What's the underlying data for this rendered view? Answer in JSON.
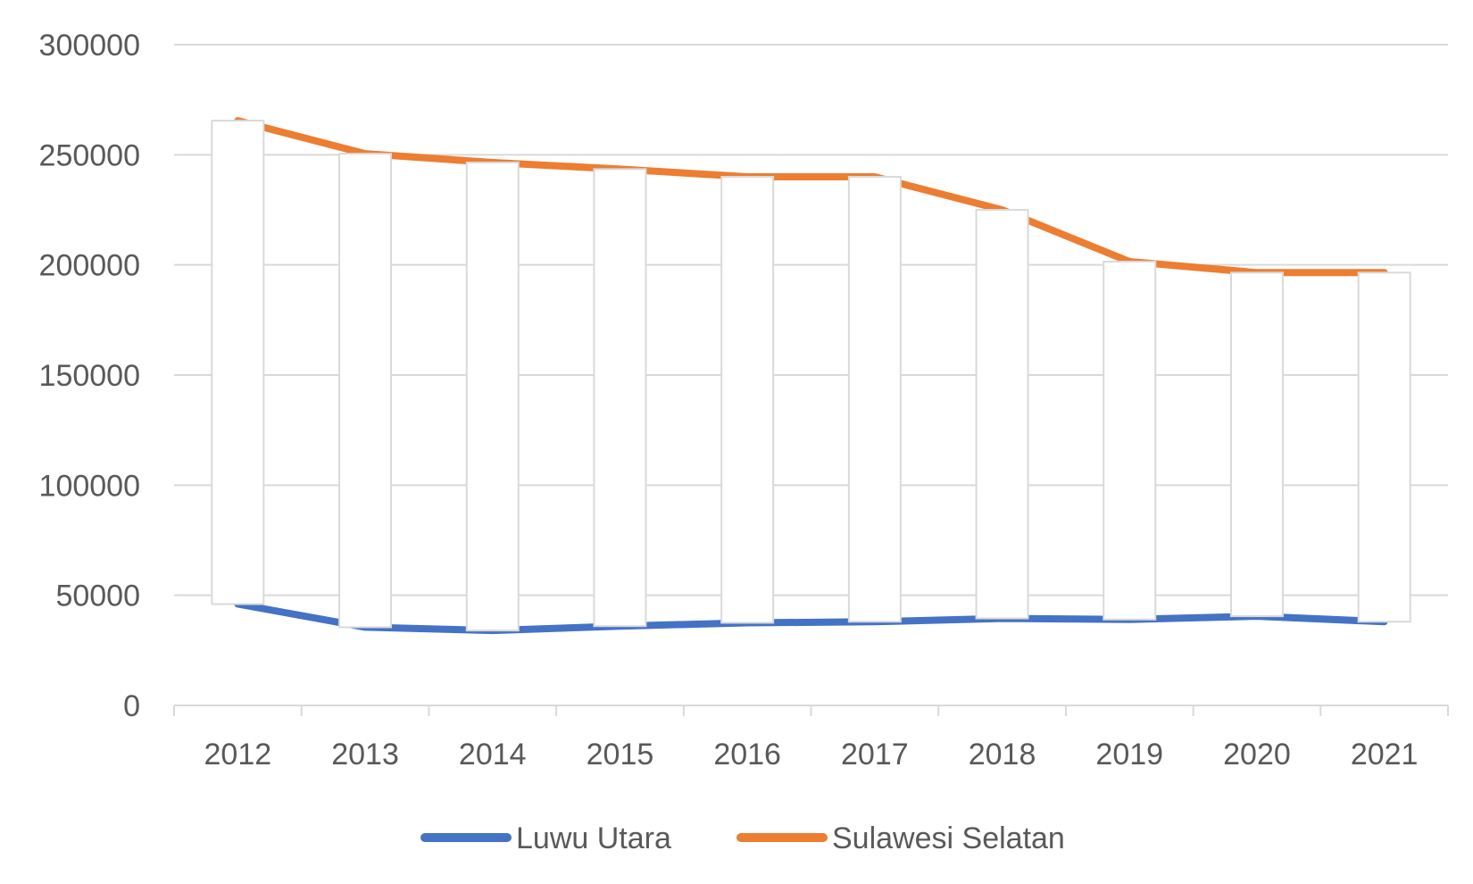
{
  "chart_data": {
    "type": "line",
    "categories": [
      "2012",
      "2013",
      "2014",
      "2015",
      "2016",
      "2017",
      "2018",
      "2019",
      "2020",
      "2021"
    ],
    "series": [
      {
        "name": "Luwu Utara",
        "color": "#4472C4",
        "values": [
          46000,
          35500,
          34000,
          36000,
          37500,
          38000,
          39500,
          39000,
          40500,
          38000
        ]
      },
      {
        "name": "Sulawesi Selatan",
        "color": "#ED7D31",
        "values": [
          265500,
          250500,
          246500,
          243500,
          240000,
          240000,
          225000,
          201500,
          196500,
          196500
        ]
      }
    ],
    "range_boxes": "high-low",
    "ylim": [
      0,
      300000
    ],
    "yticks": [
      "0",
      "50000",
      "100000",
      "150000",
      "200000",
      "250000",
      "300000"
    ],
    "grid": true,
    "legend": "bottom",
    "title": "",
    "xlabel": "",
    "ylabel": ""
  }
}
